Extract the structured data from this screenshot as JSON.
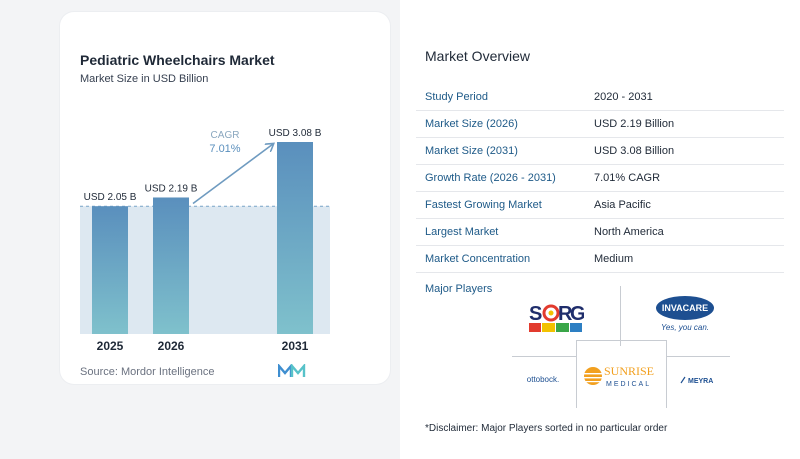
{
  "chart_data": {
    "type": "bar",
    "title": "Pediatric Wheelchairs Market",
    "subtitle": "Market Size in USD Billion",
    "categories": [
      "2025",
      "2026",
      "2031"
    ],
    "values": [
      2.05,
      2.19,
      3.08
    ],
    "value_labels": [
      "USD 2.05 B",
      "USD 2.19 B",
      "USD 3.08 B"
    ],
    "xlabel": "",
    "ylabel": "",
    "ylim": [
      0,
      3.08
    ],
    "grid": false,
    "cagr_label": "CAGR",
    "cagr_value": "7.01%",
    "colors": {
      "bar_top": "#5a8fbd",
      "bar_bottom": "#7fc1cc",
      "shade": "#dde8f1",
      "arrow": "#6f9bc0",
      "dashed": "#7aa6c8"
    }
  },
  "source": "Source:  Mordor Intelligence",
  "overview": {
    "title": "Market Overview",
    "rows": [
      {
        "label": "Study Period",
        "value": "2020 - 2031"
      },
      {
        "label": "Market Size (2026)",
        "value": "USD 2.19 Billion"
      },
      {
        "label": "Market Size (2031)",
        "value": "USD 3.08 Billion"
      },
      {
        "label": "Growth Rate (2026 - 2031)",
        "value": "7.01% CAGR"
      },
      {
        "label": "Fastest Growing Market",
        "value": "Asia Pacific"
      },
      {
        "label": "Largest Market",
        "value": "North America"
      },
      {
        "label": "Market Concentration",
        "value": "Medium"
      }
    ]
  },
  "players": {
    "title": "Major Players",
    "sorg": {
      "s": "S",
      "o": "O",
      "r": "R",
      "g": "G"
    },
    "invacare": {
      "name": "INVACARE",
      "tagline": "Yes, you can."
    },
    "ottobock": "ottobock.",
    "sunrise": {
      "line1": "SUNRISE",
      "line2": "MEDICAL"
    },
    "meyra": "MEYRA"
  },
  "disclaimer": "*Disclaimer: Major Players sorted in no particular order"
}
